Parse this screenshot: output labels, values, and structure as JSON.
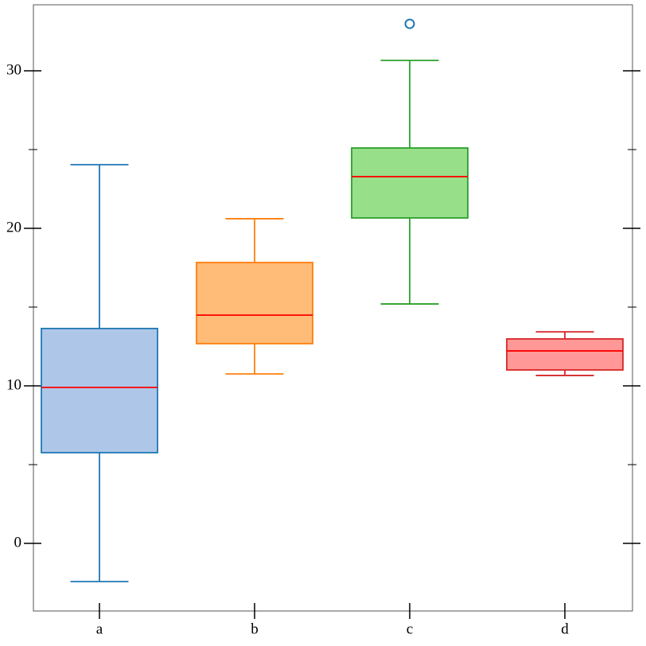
{
  "chart_data": {
    "type": "box",
    "boxes": [
      {
        "name": "a",
        "whislo": -2.42,
        "q1": 5.76,
        "med": 9.9,
        "q3": 13.64,
        "whishi": 24.04,
        "fliers": [],
        "color": "#1f77b4",
        "fill": "#aec7e8"
      },
      {
        "name": "b",
        "whislo": 10.76,
        "q1": 12.68,
        "med": 14.49,
        "q3": 17.83,
        "whishi": 20.61,
        "fliers": [],
        "color": "#ff7f0e",
        "fill": "#ffbb78"
      },
      {
        "name": "c",
        "whislo": 15.2,
        "q1": 20.66,
        "med": 23.28,
        "q3": 25.1,
        "whishi": 30.66,
        "fliers": [
          32.98
        ],
        "color": "#2ca02c",
        "fill": "#98df8a"
      },
      {
        "name": "d",
        "whislo": 10.66,
        "q1": 11.01,
        "med": 12.22,
        "q3": 12.98,
        "whishi": 13.43,
        "fliers": [],
        "color": "#d62728",
        "fill": "#ff9896"
      }
    ],
    "median_color": "#ff0000",
    "flier_color": "#1f77b4",
    "ylim": [
      -4.29,
      34.19
    ],
    "yticks": [
      0,
      10,
      20,
      30
    ],
    "yticks_minor": [
      5,
      15,
      25
    ],
    "grid": false
  }
}
